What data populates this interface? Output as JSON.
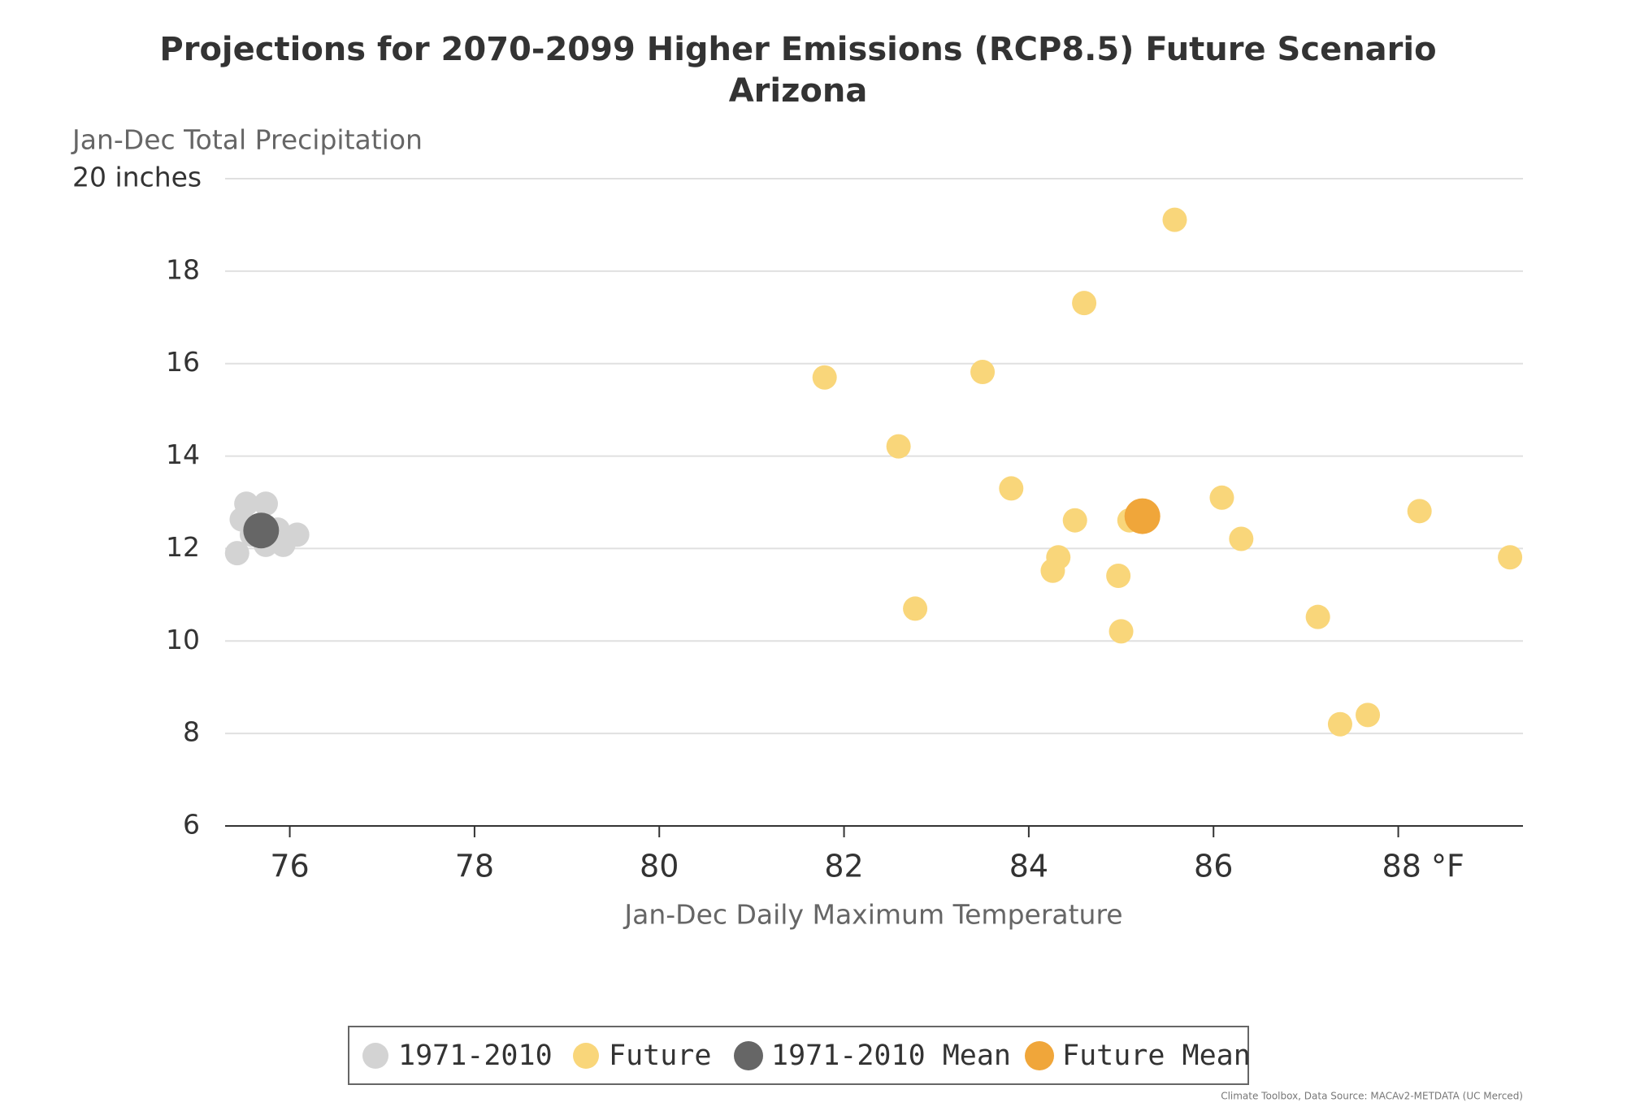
{
  "chart_data": {
    "type": "scatter",
    "title": "Projections for 2070-2099 Higher Emissions (RCP8.5) Future Scenario",
    "subtitle": "Arizona",
    "y_label": "Jan-Dec Total Precipitation",
    "x_label": "Jan-Dec Daily Maximum Temperature",
    "source": "Climate Toolbox, Data Source: MACAv2-METDATA (UC Merced)",
    "xlim": [
      75.3,
      89.35
    ],
    "ylim": [
      6,
      20
    ],
    "xticks": [
      76,
      78,
      80,
      82,
      84,
      86,
      {
        "value": 88,
        "label": "88 °F"
      }
    ],
    "yticks": [
      6,
      8,
      10,
      12,
      14,
      16,
      18,
      {
        "value": 20,
        "label": "20 inches"
      }
    ],
    "grid": true,
    "legend": "bottom",
    "series": [
      {
        "name": "1971-2010",
        "color": "#d3d3d3",
        "x": [
          75.43,
          75.48,
          75.53,
          75.74,
          75.74,
          75.93,
          76.08,
          75.59,
          75.87
        ],
        "values": [
          11.9,
          12.63,
          12.97,
          12.97,
          12.08,
          12.08,
          12.3,
          12.3,
          12.41
        ]
      },
      {
        "name": "Future",
        "color": "#f9d67a",
        "x": [
          81.79,
          83.5,
          82.59,
          84.6,
          85.58,
          83.81,
          84.5,
          84.32,
          84.26,
          82.77,
          84.97,
          85.0,
          85.09,
          86.09,
          86.3,
          87.13,
          87.37,
          87.67,
          88.23,
          89.21
        ],
        "values": [
          15.7,
          15.82,
          14.21,
          17.31,
          19.11,
          13.3,
          12.61,
          11.81,
          11.52,
          10.7,
          11.41,
          10.21,
          12.61,
          13.1,
          12.21,
          10.52,
          8.2,
          8.4,
          12.81,
          11.81
        ]
      },
      {
        "name": "1971-2010 Mean",
        "color": "#666666",
        "x": [
          75.69
        ],
        "values": [
          12.39
        ]
      },
      {
        "name": "Future Mean",
        "color": "#f0a63a",
        "x": [
          85.23
        ],
        "values": [
          12.7
        ]
      }
    ]
  }
}
